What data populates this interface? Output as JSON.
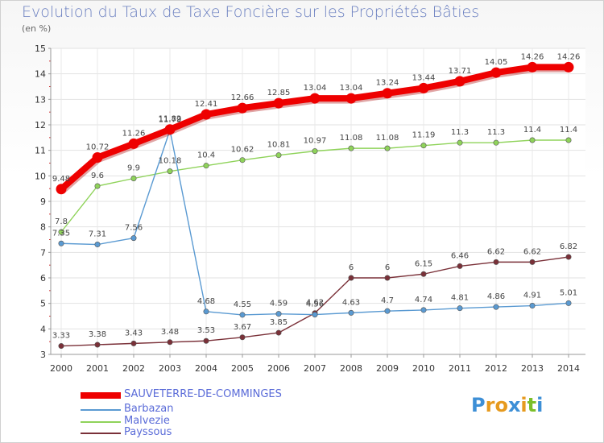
{
  "title": "Evolution du Taux de Taxe Foncière sur les Propriétés Bâties",
  "unit": "(en %)",
  "logo": {
    "letters": [
      "P",
      "r",
      "o",
      "x",
      "i",
      "t",
      "i"
    ],
    "colors": [
      "#3d8fd6",
      "#e69a1e",
      "#e69a1e",
      "#3d8fd6",
      "#e69a1e",
      "#7bbf2a",
      "#3d8fd6"
    ]
  },
  "chart_data": {
    "type": "line",
    "title": "Evolution du Taux de Taxe Foncière sur les Propriétés Bâties",
    "ylabel": "(en %)",
    "xlabel": "",
    "ylim": [
      3,
      15
    ],
    "yticks": [
      3,
      4,
      5,
      6,
      7,
      8,
      9,
      10,
      11,
      12,
      13,
      14,
      15
    ],
    "x": [
      "2000",
      "2001",
      "2002",
      "2003",
      "2004",
      "2005",
      "2006",
      "2007",
      "2008",
      "2009",
      "2010",
      "2011",
      "2012",
      "2013",
      "2014"
    ],
    "series": [
      {
        "name": "SAUVETERRE-DE-COMMINGES",
        "color": "#ee0000",
        "values": [
          9.48,
          10.72,
          11.26,
          11.82,
          12.41,
          12.66,
          12.85,
          13.04,
          13.04,
          13.24,
          13.44,
          13.71,
          14.05,
          14.26,
          14.26
        ],
        "labels": [
          "9.48",
          "10.72",
          "11.26",
          "11.82",
          "12.41",
          "12.66",
          "12.85",
          "13.04",
          "13.04",
          "13.24",
          "13.44",
          "13.71",
          "14.05",
          "14.26",
          "14.26"
        ]
      },
      {
        "name": "Barbazan",
        "color": "#5a9ad2",
        "values": [
          7.35,
          7.31,
          7.56,
          11.79,
          4.68,
          4.55,
          4.59,
          4.56,
          4.63,
          4.7,
          4.74,
          4.81,
          4.86,
          4.91,
          5.01
        ],
        "labels": [
          "7.35",
          "7.31",
          "7.56",
          "11.79",
          "4.68",
          "4.55",
          "4.59",
          "4.56",
          "4.63",
          "4.7",
          "4.74",
          "4.81",
          "4.86",
          "4.91",
          "5.01"
        ]
      },
      {
        "name": "Malvezie",
        "color": "#8fd35a",
        "values": [
          7.8,
          9.6,
          9.9,
          10.18,
          10.4,
          10.62,
          10.81,
          10.97,
          11.08,
          11.08,
          11.19,
          11.3,
          11.3,
          11.4,
          11.4
        ],
        "labels": [
          "7.8",
          "9.6",
          "9.9",
          "10.18",
          "10.4",
          "10.62",
          "10.81",
          "10.97",
          "11.08",
          "11.08",
          "11.19",
          "11.3",
          "11.3",
          "11.4",
          "11.4"
        ]
      },
      {
        "name": "Payssous",
        "color": "#7a3038",
        "values": [
          3.33,
          3.38,
          3.43,
          3.48,
          3.53,
          3.67,
          3.85,
          4.62,
          6,
          6,
          6.15,
          6.46,
          6.62,
          6.62,
          6.82
        ],
        "labels": [
          "3.33",
          "3.38",
          "3.43",
          "3.48",
          "3.53",
          "3.67",
          "3.85",
          "4.62",
          "6",
          "6",
          "6.15",
          "6.46",
          "6.62",
          "6.62",
          "6.82"
        ]
      }
    ]
  }
}
